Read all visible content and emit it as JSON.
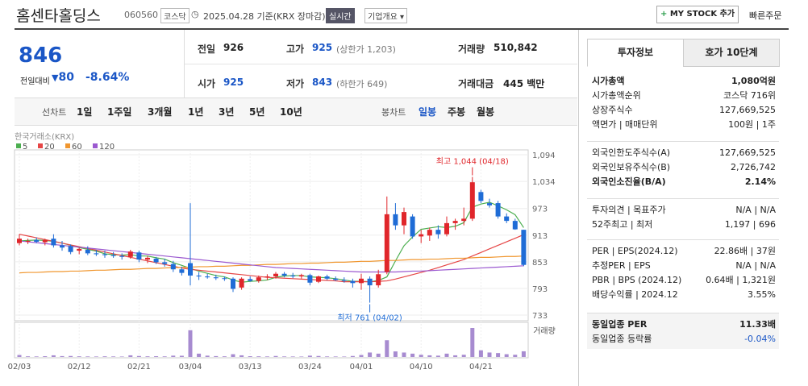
{
  "header": {
    "name": "홈센타홀딩스",
    "code": "060560",
    "market": "코스닥",
    "date": "2025.04.28 기준(KRX 장마감)",
    "realtime": "실시간",
    "company": "기업개요",
    "mystock": "MY STOCK 추가",
    "quick": "빠른주문"
  },
  "price": {
    "current": "846",
    "change_label": "전일대비",
    "change": "80",
    "change_pct": "-8.64%"
  },
  "summary": [
    {
      "label": "전일",
      "value": "926"
    },
    {
      "label": "고가",
      "value": "925",
      "note": "(상한가 1,203)",
      "color": "#1a56c6"
    },
    {
      "label": "거래량",
      "value": "510,842"
    },
    {
      "label": "시가",
      "value": "925",
      "color": "#1a56c6"
    },
    {
      "label": "저가",
      "value": "843",
      "note": "(하한가 649)",
      "color": "#1a56c6"
    },
    {
      "label": "거래대금",
      "value": "445 백만"
    }
  ],
  "tabs": {
    "line_label": "선차트",
    "line_periods": [
      "1일",
      "1주일",
      "3개월",
      "1년",
      "3년",
      "5년",
      "10년"
    ],
    "candle_label": "봉차트",
    "candle_periods": [
      "일봉",
      "주봉",
      "월봉"
    ],
    "selected": "일봉"
  },
  "chart_data": {
    "type": "candlestick",
    "source": "한국거래소(KRX)",
    "volume_label": "거래량",
    "high_label": "최고 1,044 (04/18)",
    "low_label": "최저 761 (04/02)",
    "up_color": "#e0262b",
    "down_color": "#1f6cd6",
    "volume_color": "#a78bd0",
    "ylim": [
      733,
      1094
    ],
    "yticks": [
      733,
      793,
      853,
      913,
      973,
      {
        "value": 1034,
        "label": "1,034"
      },
      {
        "value": 1094,
        "label": "1,094"
      }
    ],
    "categories": [
      "02/03",
      null,
      null,
      null,
      null,
      null,
      null,
      "02/12",
      null,
      null,
      null,
      null,
      null,
      null,
      "02/21",
      null,
      null,
      null,
      null,
      null,
      "03/04",
      null,
      null,
      null,
      null,
      null,
      null,
      "03/13",
      null,
      null,
      null,
      null,
      null,
      null,
      "03/24",
      null,
      null,
      null,
      null,
      null,
      "04/01",
      null,
      null,
      null,
      null,
      null,
      null,
      "04/10",
      null,
      null,
      null,
      null,
      null,
      null,
      "04/21",
      null,
      null,
      null,
      null,
      null
    ],
    "open": [
      895,
      900,
      902,
      897,
      905,
      890,
      888,
      878,
      880,
      872,
      870,
      868,
      866,
      864,
      874,
      858,
      860,
      852,
      848,
      836,
      850,
      822,
      820,
      818,
      816,
      815,
      795,
      814,
      810,
      818,
      820,
      826,
      822,
      820,
      823,
      808,
      820,
      815,
      812,
      810,
      805,
      815,
      800,
      830,
      960,
      935,
      955,
      910,
      912,
      925,
      915,
      940,
      945,
      950,
      1010,
      985,
      985,
      955,
      945,
      925
    ],
    "high": [
      915,
      905,
      908,
      905,
      915,
      900,
      892,
      885,
      888,
      880,
      878,
      875,
      872,
      880,
      878,
      866,
      864,
      860,
      855,
      842,
      985,
      830,
      826,
      824,
      820,
      818,
      818,
      820,
      822,
      825,
      830,
      830,
      828,
      826,
      826,
      822,
      824,
      820,
      818,
      815,
      826,
      820,
      835,
      1000,
      985,
      975,
      960,
      925,
      930,
      935,
      955,
      950,
      975,
      1044,
      1015,
      995,
      990,
      962,
      950,
      925
    ],
    "low": [
      890,
      893,
      895,
      890,
      885,
      878,
      870,
      870,
      868,
      866,
      862,
      862,
      858,
      860,
      852,
      850,
      848,
      842,
      830,
      822,
      800,
      812,
      815,
      812,
      810,
      785,
      790,
      808,
      806,
      812,
      815,
      818,
      816,
      815,
      800,
      805,
      812,
      810,
      806,
      795,
      790,
      761,
      795,
      825,
      925,
      915,
      905,
      895,
      900,
      905,
      910,
      925,
      935,
      945,
      985,
      975,
      950,
      940,
      925,
      843
    ],
    "close": [
      905,
      900,
      898,
      902,
      890,
      885,
      875,
      882,
      872,
      870,
      868,
      866,
      864,
      876,
      858,
      862,
      852,
      848,
      836,
      828,
      822,
      820,
      818,
      816,
      815,
      792,
      815,
      810,
      818,
      820,
      826,
      822,
      820,
      823,
      806,
      820,
      815,
      812,
      810,
      805,
      815,
      800,
      825,
      960,
      935,
      965,
      910,
      915,
      925,
      915,
      940,
      945,
      950,
      1032,
      990,
      980,
      955,
      945,
      926,
      846
    ],
    "volume": [
      180000,
      60000,
      50000,
      70000,
      150000,
      80000,
      90000,
      60000,
      50000,
      45000,
      60000,
      50000,
      40000,
      150000,
      90000,
      60000,
      70000,
      55000,
      120000,
      110000,
      2400000,
      300000,
      120000,
      80000,
      60000,
      250000,
      150000,
      70000,
      60000,
      50000,
      90000,
      50000,
      45000,
      40000,
      120000,
      90000,
      50000,
      45000,
      40000,
      90000,
      180000,
      400000,
      300000,
      1500000,
      500000,
      400000,
      300000,
      200000,
      150000,
      120000,
      300000,
      150000,
      200000,
      2600000,
      600000,
      400000,
      350000,
      250000,
      200000,
      510842
    ],
    "series": [
      {
        "name": "5",
        "color": "#4caf50",
        "values": [
          900,
          901,
          902,
          901,
          899,
          895,
          890,
          885,
          881,
          877,
          871,
          869,
          868,
          869,
          866,
          866,
          862,
          859,
          851,
          845,
          838,
          832,
          827,
          822,
          819,
          812,
          807,
          809,
          810,
          812,
          818,
          821,
          822,
          822,
          819,
          818,
          817,
          815,
          812,
          809,
          809,
          808,
          811,
          819,
          855,
          889,
          909,
          926,
          929,
          932,
          930,
          933,
          941,
          976,
          983,
          987,
          979,
          970,
          959,
          930
        ]
      },
      {
        "name": "20",
        "color": "#e64646",
        "values": [
          915,
          911,
          907,
          903,
          899,
          895,
          891,
          887,
          883,
          879,
          875,
          871,
          867,
          863,
          859,
          855,
          851,
          847,
          843,
          839,
          836,
          834,
          832,
          830,
          828,
          826,
          824,
          822,
          820,
          818,
          817,
          816,
          815,
          814,
          813,
          812,
          811,
          810,
          808,
          808,
          808,
          808,
          809,
          810,
          814,
          819,
          824,
          829,
          834,
          840,
          846,
          852,
          858,
          866,
          874,
          882,
          890,
          898,
          906,
          914
        ]
      },
      {
        "name": "60",
        "color": "#f0962e",
        "values": [
          828,
          829,
          829,
          830,
          831,
          831,
          832,
          832,
          833,
          834,
          834,
          835,
          836,
          836,
          837,
          838,
          838,
          839,
          840,
          840,
          841,
          842,
          842,
          843,
          843,
          844,
          845,
          845,
          846,
          847,
          847,
          848,
          849,
          849,
          850,
          850,
          851,
          852,
          852,
          853,
          854,
          854,
          855,
          856,
          856,
          857,
          858,
          858,
          859,
          859,
          860,
          861,
          861,
          862,
          863,
          863,
          864,
          865,
          865,
          866
        ]
      },
      {
        "name": "120",
        "color": "#9b59d0",
        "values": [
          900,
          898,
          896,
          894,
          892,
          890,
          888,
          886,
          884,
          882,
          880,
          878,
          876,
          874,
          872,
          870,
          868,
          866,
          864,
          862,
          860,
          858,
          856,
          854,
          852,
          850,
          848,
          846,
          844,
          842,
          840,
          839,
          838,
          837,
          836,
          835,
          834,
          833,
          832,
          831,
          830,
          830,
          830,
          830,
          830,
          831,
          832,
          832,
          833,
          834,
          835,
          836,
          837,
          838,
          839,
          840,
          841,
          842,
          843,
          844
        ]
      }
    ]
  },
  "info": {
    "tabs": [
      "투자정보",
      "호가 10단계"
    ],
    "groups": [
      [
        {
          "label": "시가총액",
          "value": "1,080억원",
          "bold": true
        },
        {
          "label": "시가총액순위",
          "value": "코스닥 716위"
        },
        {
          "label": "상장주식수",
          "value": "127,669,525"
        },
        {
          "label": "액면가 | 매매단위",
          "value": "100원 | 1주"
        }
      ],
      [
        {
          "label": "외국인한도주식수(A)",
          "value": "127,669,525"
        },
        {
          "label": "외국인보유주식수(B)",
          "value": "2,726,742"
        },
        {
          "label": "외국인소진율(B/A)",
          "value": "2.14%",
          "bold": true
        }
      ],
      [
        {
          "label": "투자의견 | 목표주가",
          "value": "N/A | N/A"
        },
        {
          "label": "52주최고 | 최저",
          "value": "1,197 | 696"
        }
      ],
      [
        {
          "label": "PER | EPS(2024.12)",
          "value": "22.86배 | 37원"
        },
        {
          "label": "추정PER | EPS",
          "value": "N/A | N/A"
        },
        {
          "label": "PBR | BPS (2024.12)",
          "value": "0.64배 | 1,321원"
        },
        {
          "label": "배당수익률 | 2024.12",
          "value": "3.55%"
        }
      ],
      [
        {
          "label": "동일업종 PER",
          "value": "11.33배",
          "bold": true
        },
        {
          "label": "동일업종 등락률",
          "value": "-0.04%",
          "color": "#1a56c6"
        }
      ]
    ]
  }
}
